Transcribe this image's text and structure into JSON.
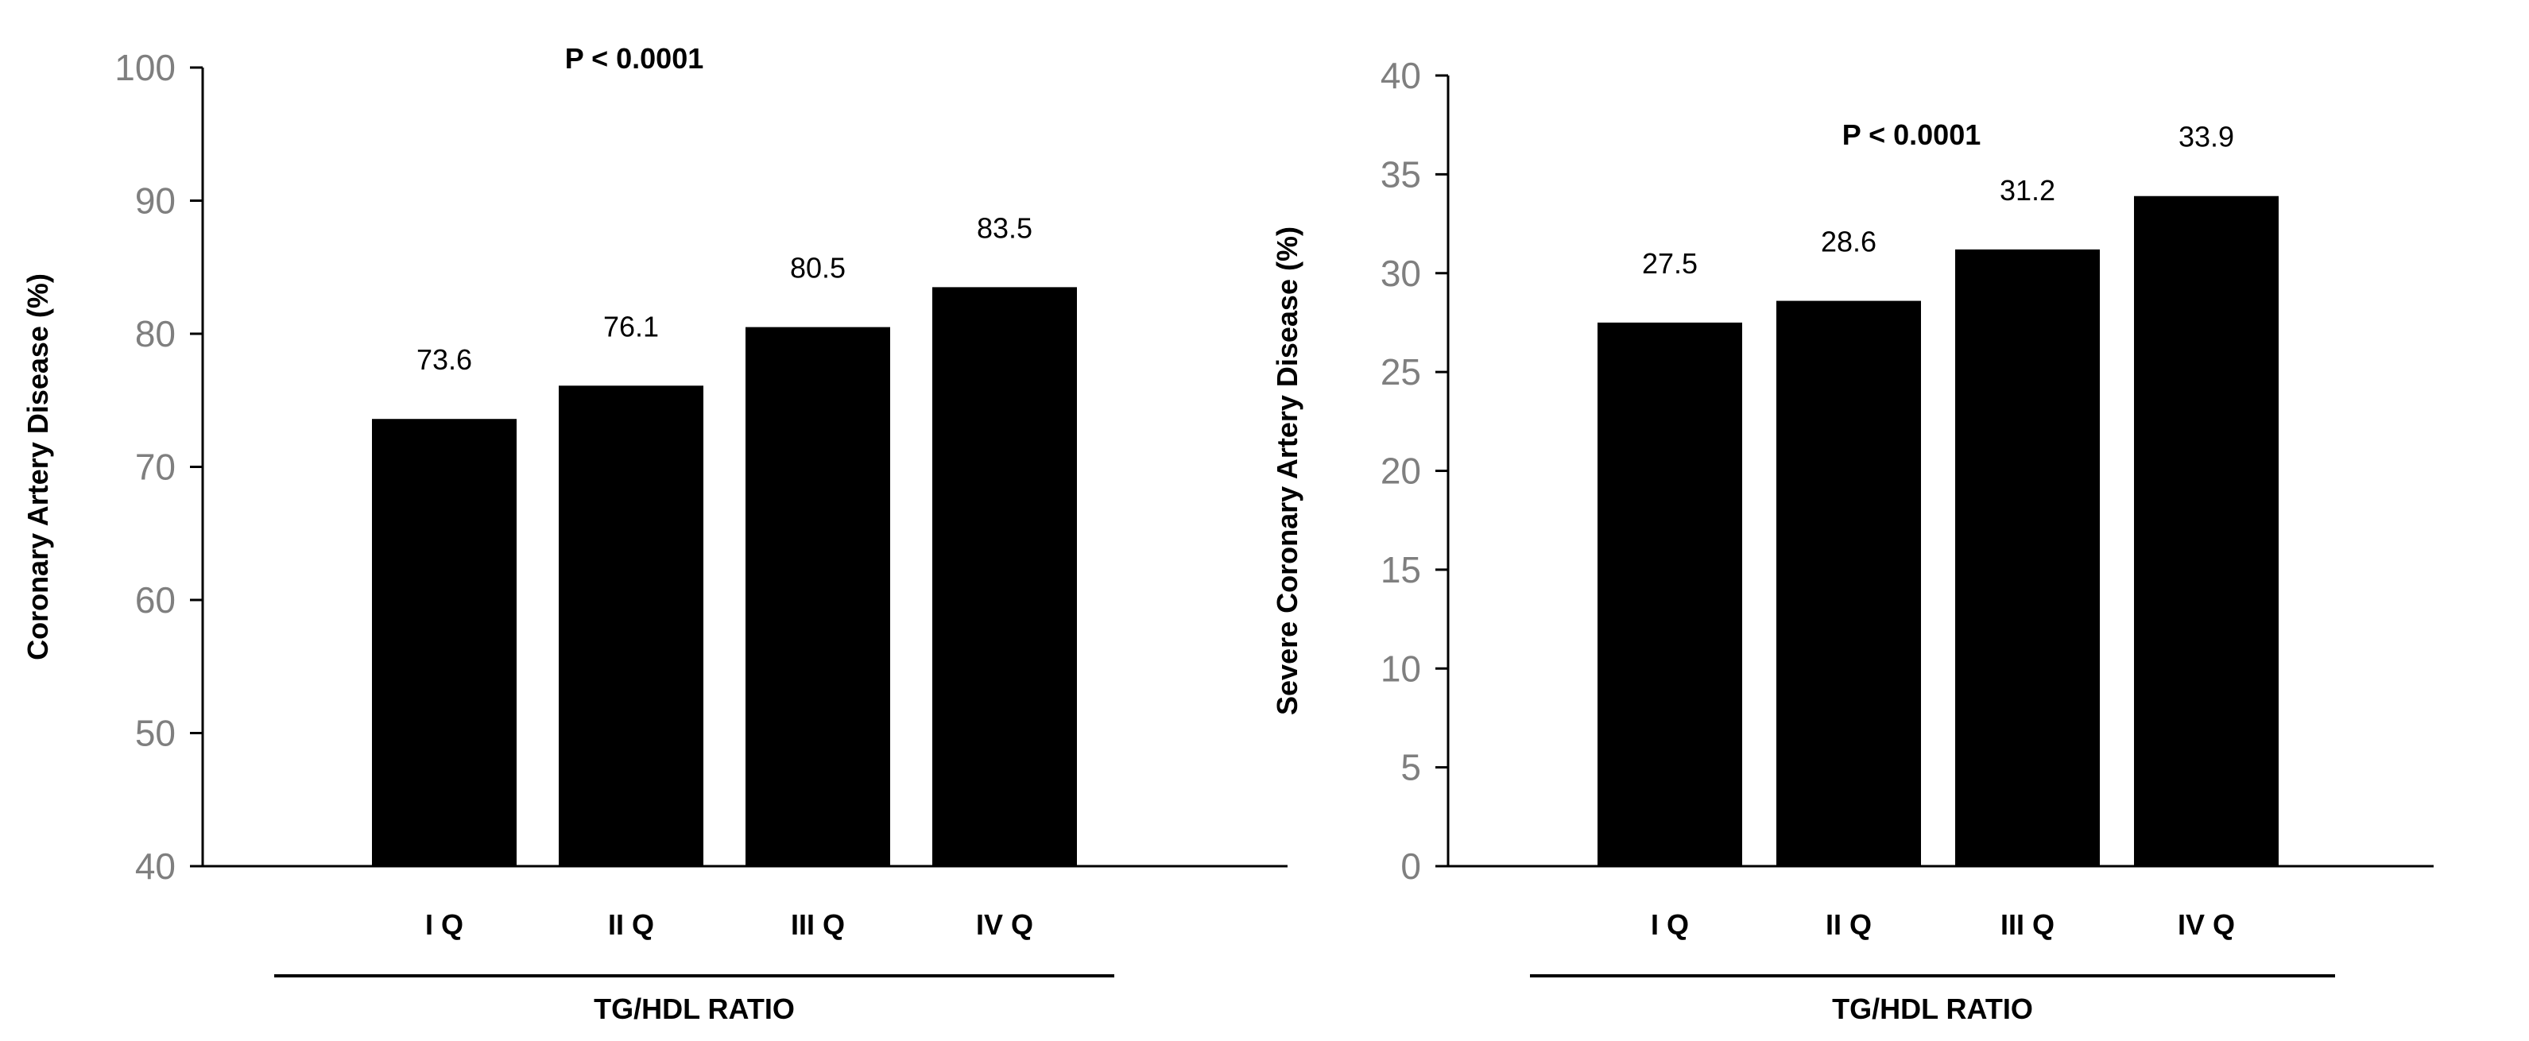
{
  "chart_data": [
    {
      "type": "bar",
      "categories": [
        "I Q",
        "II Q",
        "III Q",
        "IV Q"
      ],
      "values": [
        73.6,
        76.1,
        80.5,
        83.5
      ],
      "ylabel": "Coronary  Artery Disease (%)",
      "xlabel": "TG/HDL  RATIO",
      "annotation": "P < 0.0001",
      "ylim": [
        40,
        100
      ],
      "yticks": [
        40,
        50,
        60,
        70,
        80,
        90,
        100
      ],
      "bar_color": "#000000",
      "grid": false
    },
    {
      "type": "bar",
      "categories": [
        "I Q",
        "II Q",
        "III Q",
        "IV Q"
      ],
      "values": [
        27.5,
        28.6,
        31.2,
        33.9
      ],
      "ylabel": "Severe Coronary  Artery Disease (%)",
      "xlabel": "TG/HDL  RATIO",
      "annotation": "P < 0.0001",
      "ylim": [
        0,
        40
      ],
      "yticks": [
        0,
        5,
        10,
        15,
        20,
        25,
        30,
        35,
        40
      ],
      "bar_color": "#000000",
      "grid": false
    }
  ]
}
